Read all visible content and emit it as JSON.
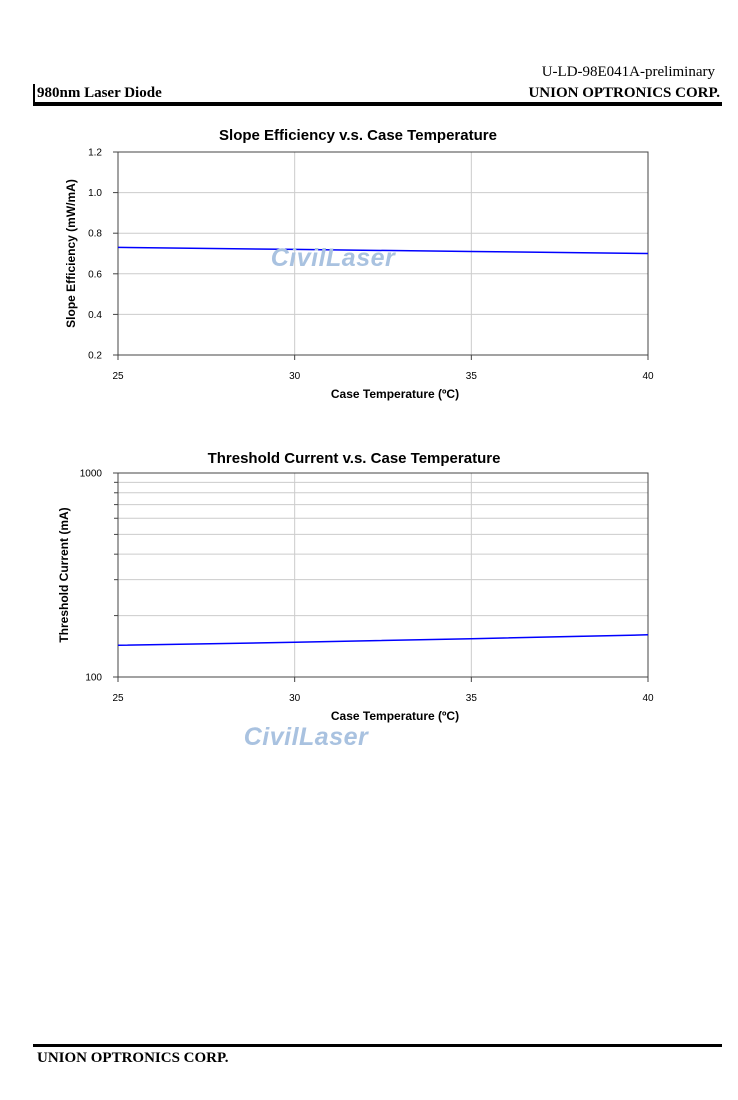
{
  "header": {
    "doc_code": "U-LD-98E041A-preliminary",
    "product": "980nm Laser Diode",
    "company": "UNION OPTRONICS CORP."
  },
  "footer": {
    "company": "UNION OPTRONICS CORP."
  },
  "watermark": "CivilLaser",
  "colors": {
    "series_line": "#0000ff",
    "grid": "#cccccc",
    "axis": "#444444",
    "watermark": "#a9c2e0"
  },
  "chart_data": [
    {
      "type": "line",
      "title": "Slope Efficiency v.s. Case Temperature",
      "xlabel": "Case Temperature (ºC)",
      "ylabel": "Slope Efficiency (mW/mA)",
      "xlim": [
        25,
        40
      ],
      "ylim": [
        0.2,
        1.2
      ],
      "xticks": [
        25,
        30,
        35,
        40
      ],
      "yticks": [
        "0.2",
        "0.4",
        "0.6",
        "0.8",
        "1.0",
        "1.2"
      ],
      "yscale": "linear",
      "grid": true,
      "series": [
        {
          "x": [
            25,
            30,
            35,
            40
          ],
          "y": [
            0.73,
            0.72,
            0.71,
            0.7
          ]
        }
      ]
    },
    {
      "type": "line",
      "title": "Threshold Current v.s. Case Temperature",
      "xlabel": "Case Temperature (ºC)",
      "ylabel": "Threshold Current (mA)",
      "xlim": [
        25,
        40
      ],
      "ylim": [
        100,
        1000
      ],
      "xticks": [
        25,
        30,
        35,
        40
      ],
      "yticks": [
        "100",
        "1000"
      ],
      "yscale": "log",
      "grid": true,
      "series": [
        {
          "x": [
            25,
            30,
            35,
            40
          ],
          "y": [
            143,
            148,
            154,
            161
          ]
        }
      ]
    }
  ]
}
